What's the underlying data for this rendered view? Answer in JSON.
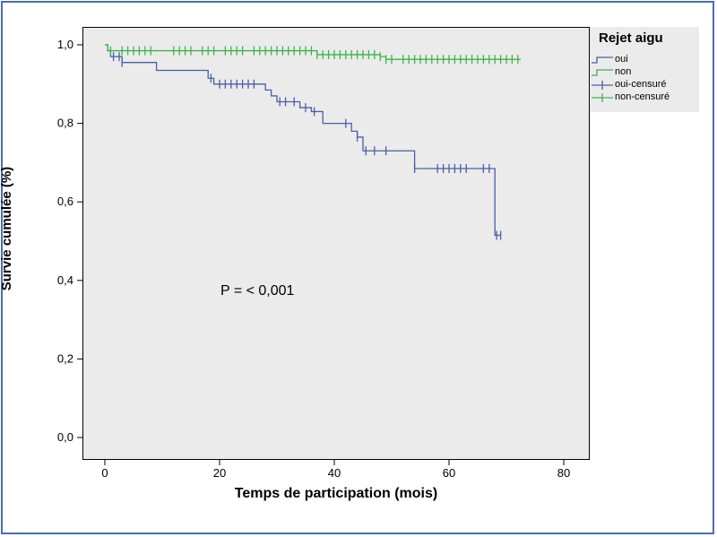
{
  "chart_data": {
    "type": "line",
    "subtype": "kaplan-meier",
    "title": "",
    "xlabel": "Temps de participation (mois)",
    "ylabel": "Survie cumulée (%)",
    "xlim": [
      0,
      80
    ],
    "ylim": [
      0.0,
      1.0
    ],
    "x_ticks": [
      0,
      20,
      40,
      60,
      80
    ],
    "x_tick_labels": [
      "0",
      "20",
      "40",
      "60",
      "80"
    ],
    "y_ticks": [
      0.0,
      0.2,
      0.4,
      0.6,
      0.8,
      1.0
    ],
    "y_tick_labels": [
      "0,0",
      "0,2",
      "0,4",
      "0,6",
      "0,8",
      "1,0"
    ],
    "grid": false,
    "legend": {
      "title": "Rejet aigu",
      "placement": "right",
      "entries": [
        {
          "label": "oui",
          "color": "#4a5fa8",
          "kind": "line"
        },
        {
          "label": "non",
          "color": "#3fb34a",
          "kind": "line"
        },
        {
          "label": "oui-censuré",
          "color": "#4a5fa8",
          "kind": "censor"
        },
        {
          "label": "non-censuré",
          "color": "#3fb34a",
          "kind": "censor"
        }
      ]
    },
    "annotation": "P = < 0,001",
    "series": [
      {
        "name": "oui",
        "color": "#4a5fa8",
        "steps": [
          [
            0,
            1.0
          ],
          [
            0.5,
            0.985
          ],
          [
            1,
            0.97
          ],
          [
            3,
            0.955
          ],
          [
            9,
            0.935
          ],
          [
            18,
            0.915
          ],
          [
            19,
            0.9
          ],
          [
            28,
            0.885
          ],
          [
            29,
            0.87
          ],
          [
            30,
            0.855
          ],
          [
            34,
            0.84
          ],
          [
            36,
            0.83
          ],
          [
            38,
            0.8
          ],
          [
            43,
            0.78
          ],
          [
            44,
            0.765
          ],
          [
            45,
            0.73
          ],
          [
            54,
            0.685
          ],
          [
            68,
            0.515
          ],
          [
            69,
            0.515
          ]
        ],
        "censored": [
          1.5,
          2.5,
          3,
          18.5,
          20,
          21,
          22,
          23,
          24,
          25,
          26,
          30.5,
          31.5,
          33,
          35,
          36.5,
          42,
          44,
          45.5,
          47,
          49,
          54,
          58,
          59,
          60,
          61,
          62,
          63,
          66,
          67,
          68.3,
          69
        ]
      },
      {
        "name": "non",
        "color": "#3fb34a",
        "steps": [
          [
            0,
            1.0
          ],
          [
            0.5,
            0.985
          ],
          [
            37,
            0.975
          ],
          [
            48,
            0.97
          ],
          [
            49,
            0.963
          ],
          [
            72.5,
            0.963
          ]
        ],
        "censored": [
          1,
          3,
          4,
          5,
          6,
          7,
          8,
          12,
          13,
          14,
          15,
          17,
          18,
          19,
          21,
          22,
          23,
          24,
          26,
          27,
          28,
          29,
          30,
          31,
          32,
          33,
          34,
          35,
          36,
          37,
          38,
          39,
          40,
          41,
          42,
          43,
          44,
          45,
          46,
          47,
          48,
          49,
          50,
          52,
          53,
          54,
          55,
          56,
          57,
          58,
          59,
          60,
          61,
          62,
          63,
          64,
          65,
          66,
          67,
          68,
          69,
          70,
          71,
          72
        ]
      }
    ]
  }
}
